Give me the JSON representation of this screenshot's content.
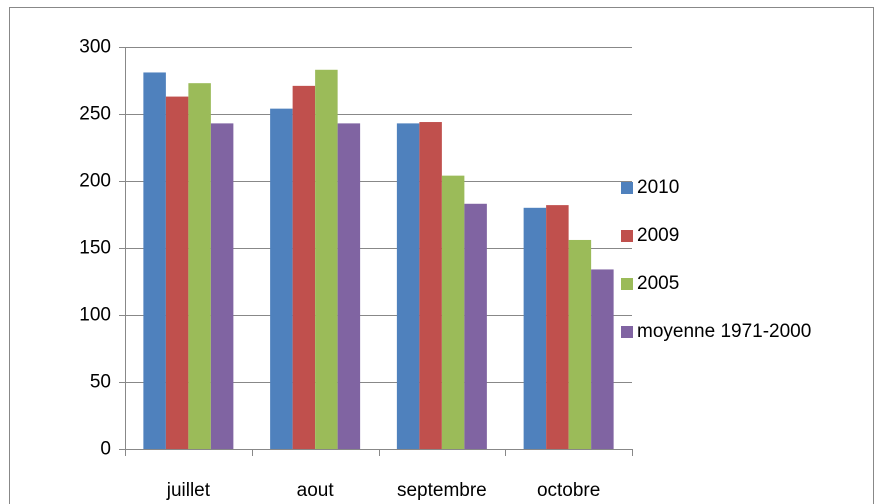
{
  "chart_data": {
    "type": "bar",
    "categories": [
      "juillet",
      "aout",
      "septembre",
      "octobre"
    ],
    "series": [
      {
        "name": "2010",
        "color": "#4f81bd",
        "values": [
          281,
          254,
          243,
          180
        ]
      },
      {
        "name": "2009",
        "color": "#c0504d",
        "values": [
          263,
          271,
          244,
          182
        ]
      },
      {
        "name": "2005",
        "color": "#9bbb59",
        "values": [
          273,
          283,
          204,
          156
        ]
      },
      {
        "name": "moyenne 1971-2000",
        "color": "#8064a2",
        "values": [
          243,
          243,
          183,
          134
        ]
      }
    ],
    "ylim": [
      0,
      300
    ],
    "yticks": [
      0,
      50,
      100,
      150,
      200,
      250,
      300
    ],
    "grid": true,
    "legend": "right"
  }
}
